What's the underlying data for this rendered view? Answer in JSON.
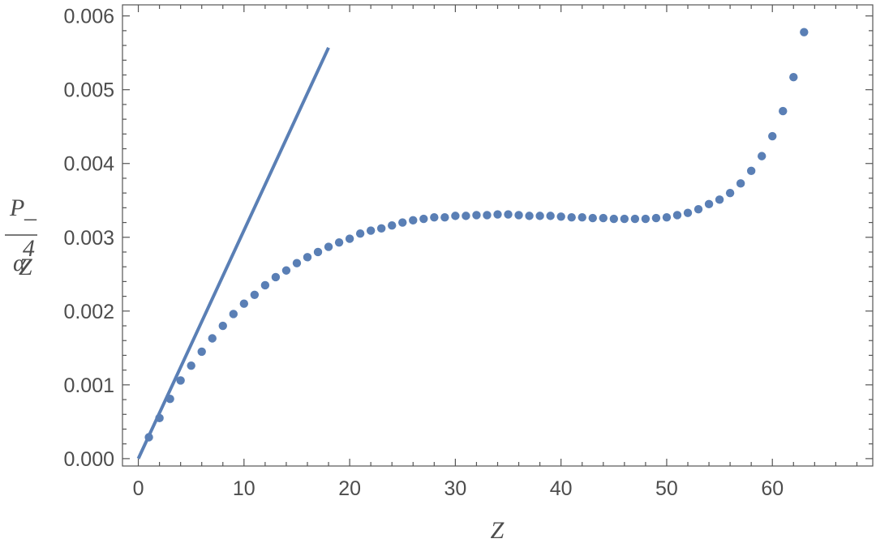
{
  "chart_data": {
    "type": "scatter",
    "xlabel": "Z",
    "ylabel": {
      "numerator": "P",
      "subscript": "–",
      "denominator": "α",
      "den_subscript": "Z",
      "den_superscript": "4"
    },
    "xlim": [
      -1.5,
      69.5
    ],
    "ylim": [
      -0.0001,
      0.00615
    ],
    "x_ticks": [
      0,
      10,
      20,
      30,
      40,
      50,
      60
    ],
    "x_tick_labels": [
      "0",
      "10",
      "20",
      "30",
      "40",
      "50",
      "60"
    ],
    "y_ticks": [
      0,
      0.001,
      0.002,
      0.003,
      0.004,
      0.005,
      0.006
    ],
    "y_tick_labels": [
      "0.000",
      "0.001",
      "0.002",
      "0.003",
      "0.004",
      "0.005",
      "0.006"
    ],
    "grid": false,
    "color": "#5a7fb5",
    "line": {
      "x": [
        0,
        18
      ],
      "y": [
        0,
        0.00557
      ]
    },
    "points": {
      "x": [
        1,
        2,
        3,
        4,
        5,
        6,
        7,
        8,
        9,
        10,
        11,
        12,
        13,
        14,
        15,
        16,
        17,
        18,
        19,
        20,
        21,
        22,
        23,
        24,
        25,
        26,
        27,
        28,
        29,
        30,
        31,
        32,
        33,
        34,
        35,
        36,
        37,
        38,
        39,
        40,
        41,
        42,
        43,
        44,
        45,
        46,
        47,
        48,
        49,
        50,
        51,
        52,
        53,
        54,
        55,
        56,
        57,
        58,
        59,
        60,
        61,
        62,
        63
      ],
      "y": [
        0.00029,
        0.00055,
        0.00081,
        0.00106,
        0.00126,
        0.00145,
        0.00163,
        0.0018,
        0.00196,
        0.0021,
        0.00222,
        0.00235,
        0.00246,
        0.00255,
        0.00265,
        0.00273,
        0.0028,
        0.00287,
        0.00293,
        0.00298,
        0.00305,
        0.00309,
        0.00312,
        0.00316,
        0.0032,
        0.00323,
        0.00325,
        0.00327,
        0.00327,
        0.00329,
        0.00329,
        0.0033,
        0.0033,
        0.00331,
        0.00331,
        0.0033,
        0.00329,
        0.00329,
        0.00329,
        0.00328,
        0.00327,
        0.00327,
        0.00326,
        0.00326,
        0.00325,
        0.00325,
        0.00325,
        0.00325,
        0.00326,
        0.00327,
        0.0033,
        0.00333,
        0.00338,
        0.00345,
        0.00351,
        0.0036,
        0.00373,
        0.0039,
        0.0041,
        0.00437,
        0.00471,
        0.00517,
        0.00578
      ]
    }
  }
}
